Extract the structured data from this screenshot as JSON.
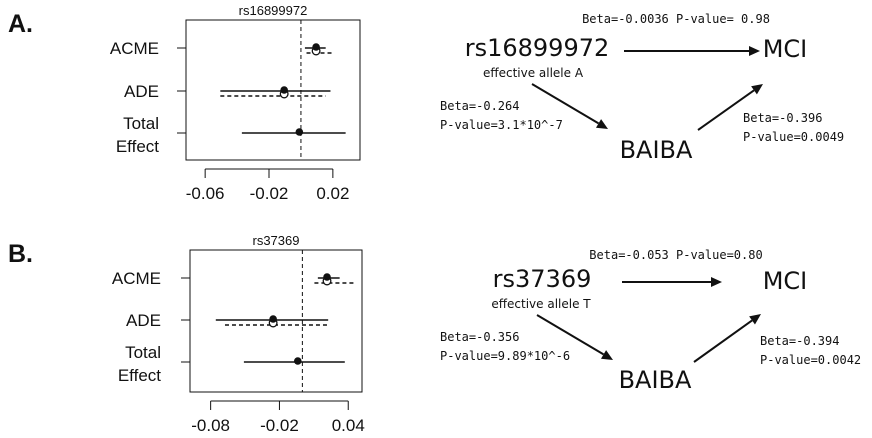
{
  "colors": {
    "ink": "#111111"
  },
  "panels": [
    {
      "letter": "A.",
      "title": "rs16899972",
      "rows": [
        {
          "label": [
            "ACME"
          ],
          "solid": {
            "est": 0.0095,
            "lo": 0.0025,
            "hi": 0.0155
          },
          "dashed": {
            "est": 0.0095,
            "lo": 0.0035,
            "hi": 0.0195
          }
        },
        {
          "label": [
            "ADE"
          ],
          "solid": {
            "est": -0.0105,
            "lo": -0.0505,
            "hi": 0.0185
          },
          "dashed": {
            "est": -0.0105,
            "lo": -0.0505,
            "hi": 0.0155
          }
        },
        {
          "label": [
            "Total",
            "Effect"
          ],
          "solid": {
            "est": -0.001,
            "lo": -0.037,
            "hi": 0.028
          },
          "dashed": null
        }
      ],
      "xlim": [
        -0.072,
        0.037
      ],
      "ticks": [
        -0.06,
        -0.02,
        0.02
      ],
      "tick_labels": [
        "-0.06",
        "-0.02",
        "0.02"
      ],
      "zero": 0,
      "diagram": {
        "snp": "rs16899972",
        "allele": "effective allele A",
        "outcome": "MCI",
        "mediator": "BAIBA",
        "direct": "Beta=-0.0036 P-value= 0.98",
        "snp_mediator": [
          "Beta=-0.264",
          "P-value=3.1*10^-7"
        ],
        "mediator_outcome": [
          "Beta=-0.396",
          "P-value=0.0049"
        ]
      }
    },
    {
      "letter": "B.",
      "title": "rs37369",
      "rows": [
        {
          "label": [
            "ACME"
          ],
          "solid": {
            "est": 0.0215,
            "lo": 0.0135,
            "hi": 0.0325
          },
          "dashed": {
            "est": 0.0215,
            "lo": 0.0105,
            "hi": 0.0455
          }
        },
        {
          "label": [
            "ADE"
          ],
          "solid": {
            "est": -0.0255,
            "lo": -0.0755,
            "hi": 0.0225
          },
          "dashed": {
            "est": -0.0255,
            "lo": -0.0675,
            "hi": 0.0225
          }
        },
        {
          "label": [
            "Total",
            "Effect"
          ],
          "solid": {
            "est": -0.004,
            "lo": -0.051,
            "hi": 0.037
          },
          "dashed": null
        }
      ],
      "xlim": [
        -0.098,
        0.052
      ],
      "ticks": [
        -0.08,
        -0.02,
        0.04
      ],
      "tick_labels": [
        "-0.08",
        "-0.02",
        "0.04"
      ],
      "zero": 0,
      "diagram": {
        "snp": "rs37369",
        "allele": "effective allele T",
        "outcome": "MCI",
        "mediator": "BAIBA",
        "direct": "Beta=-0.053 P-value=0.80",
        "snp_mediator": [
          "Beta=-0.356",
          "P-value=9.89*10^-6"
        ],
        "mediator_outcome": [
          "Beta=-0.394",
          "P-value=0.0042"
        ]
      }
    }
  ]
}
